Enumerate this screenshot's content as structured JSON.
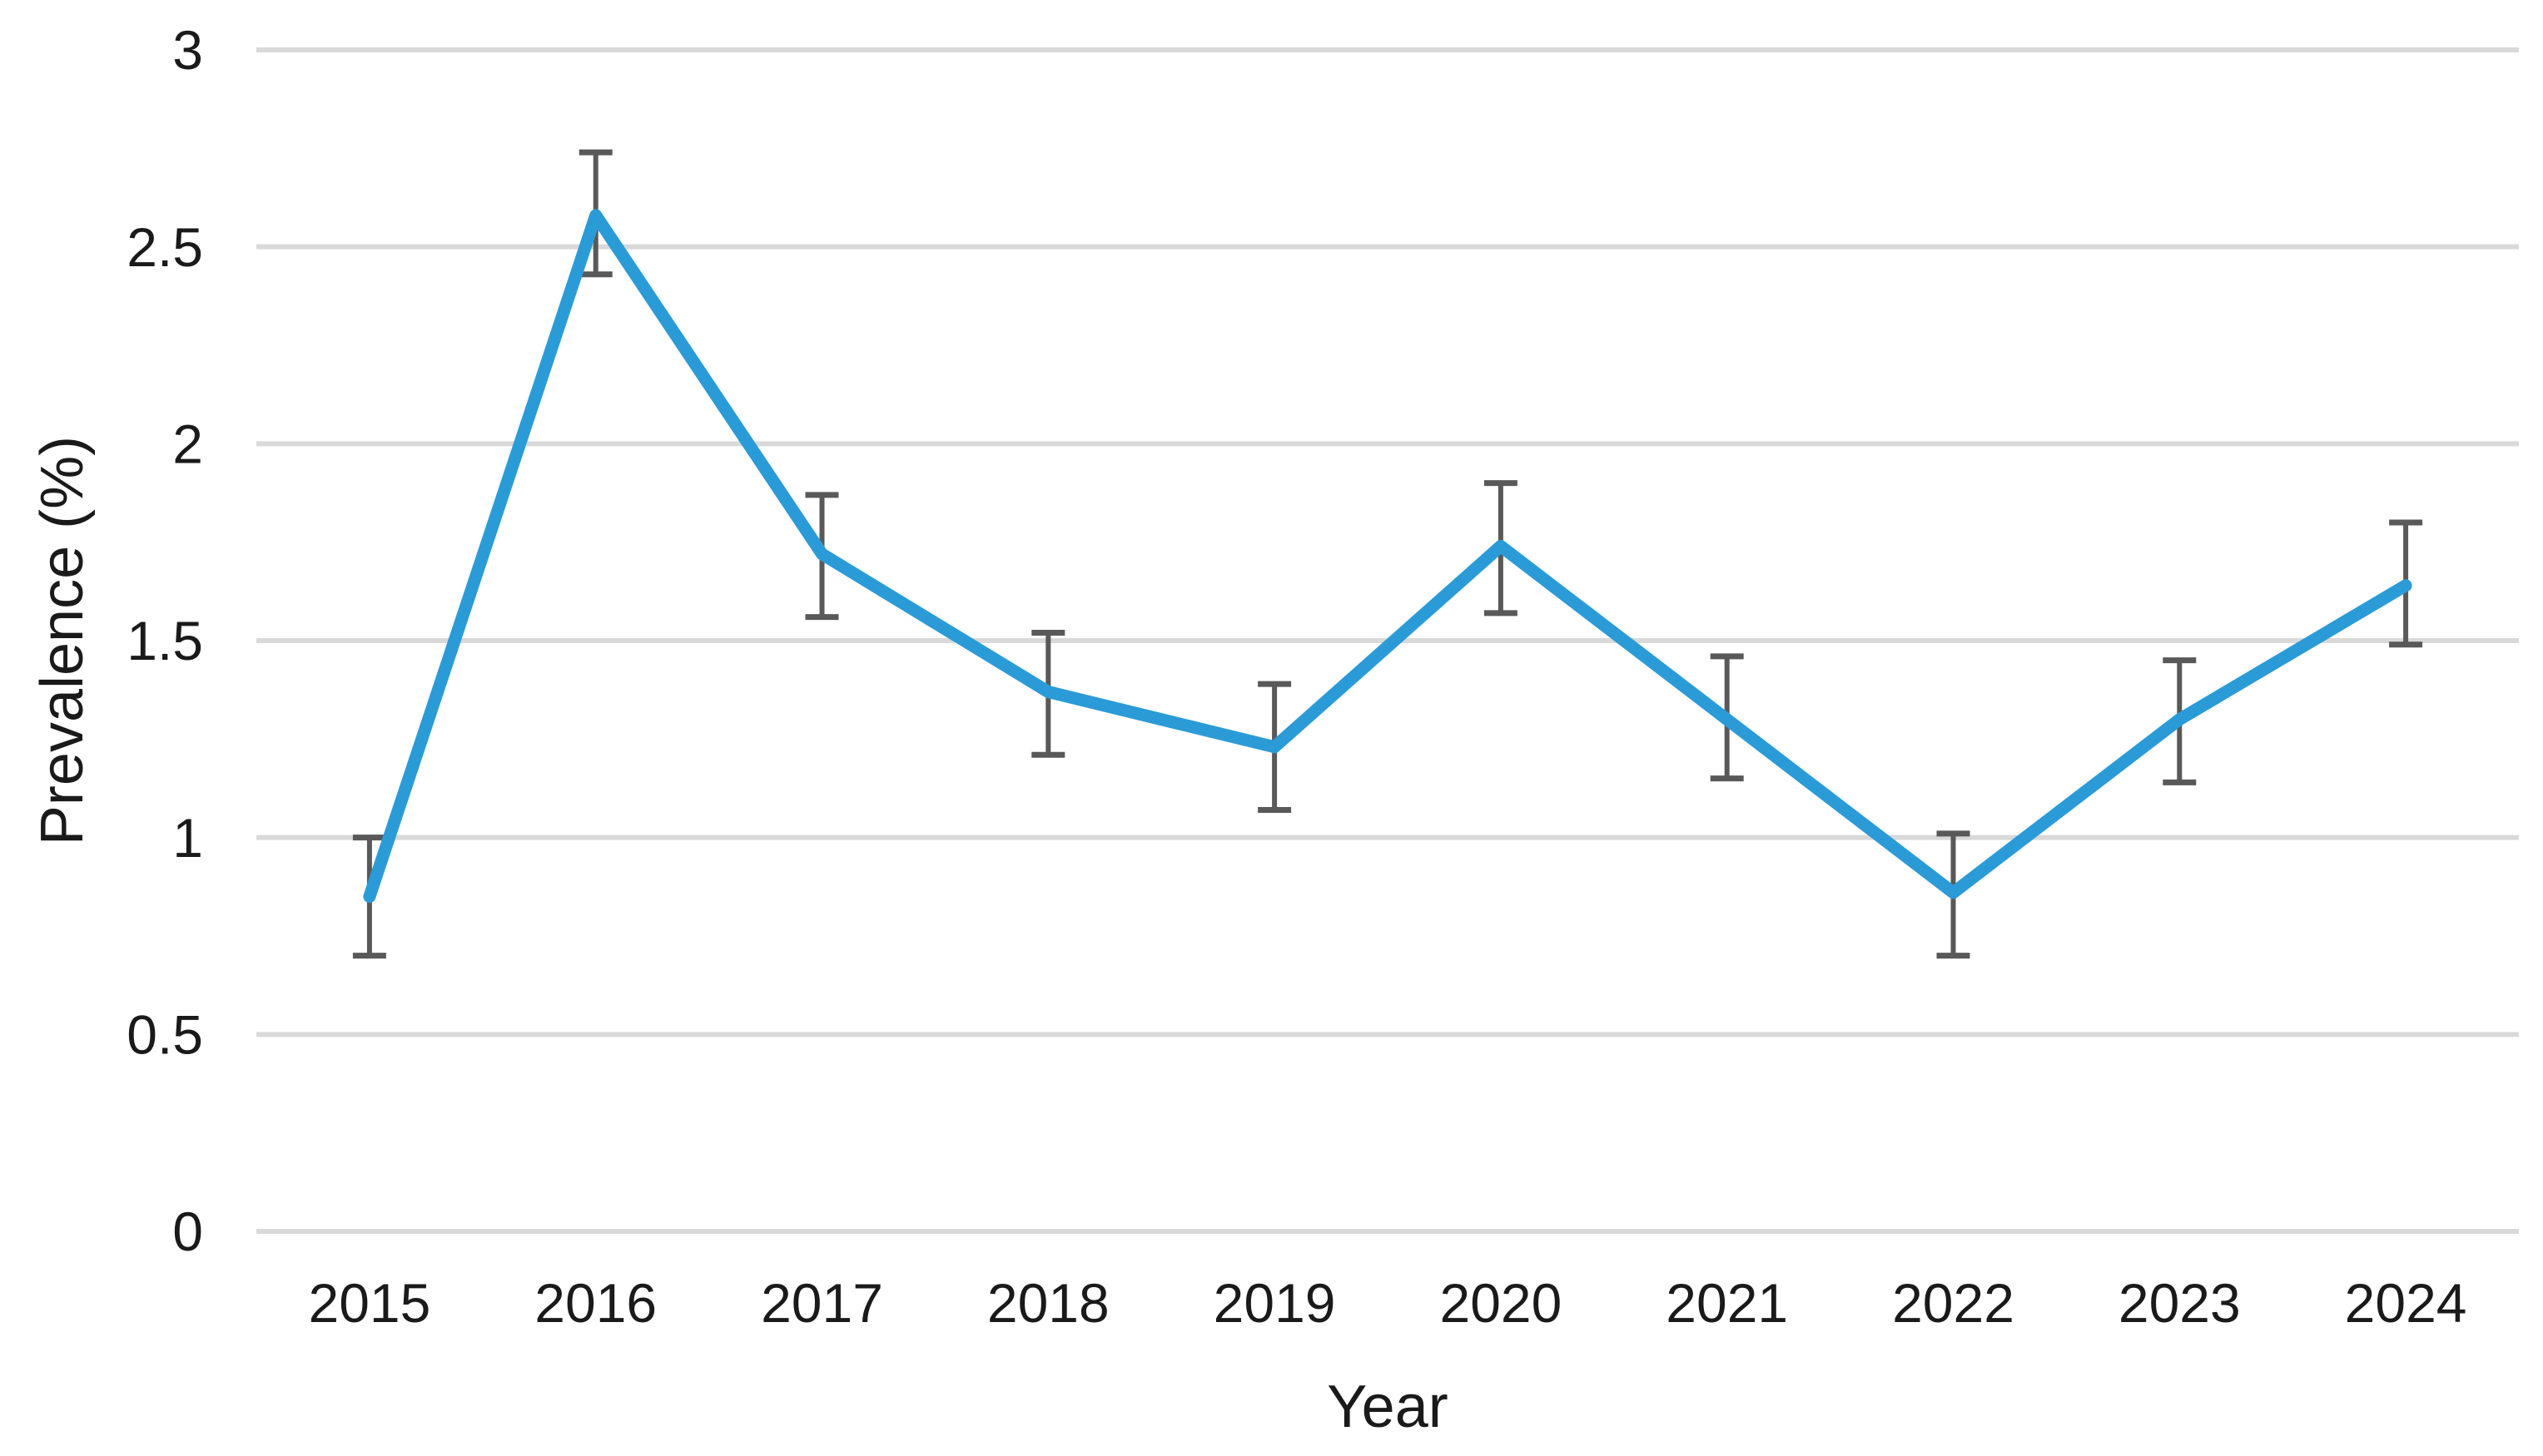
{
  "chart_data": {
    "type": "line",
    "title": "",
    "xlabel": "Year",
    "ylabel": "Prevalence (%)",
    "x": [
      2015,
      2016,
      2017,
      2018,
      2019,
      2020,
      2021,
      2022,
      2023,
      2024
    ],
    "series": [
      {
        "name": "Prevalence",
        "values": [
          0.85,
          2.58,
          1.72,
          1.37,
          1.23,
          1.74,
          1.3,
          0.86,
          1.3,
          1.64
        ],
        "ci_low": [
          0.7,
          2.43,
          1.56,
          1.21,
          1.07,
          1.57,
          1.15,
          0.7,
          1.14,
          1.49
        ],
        "ci_high": [
          1.0,
          2.74,
          1.87,
          1.52,
          1.39,
          1.9,
          1.46,
          1.01,
          1.45,
          1.8
        ]
      }
    ],
    "ylim": [
      0,
      3
    ],
    "yticks": [
      0,
      0.5,
      1,
      1.5,
      2,
      2.5,
      3
    ],
    "ytick_labels": [
      "0",
      "0.5",
      "1",
      "1.5",
      "2",
      "2.5",
      "3"
    ],
    "xtick_labels": [
      "2015",
      "2016",
      "2017",
      "2018",
      "2019",
      "2020",
      "2021",
      "2022",
      "2023",
      "2024"
    ],
    "grid": "horizontal",
    "legend": "none",
    "error_bars": true
  },
  "colors": {
    "line": "#2B9BD7",
    "error_bar": "#595959",
    "gridline": "#D9D9D9",
    "text": "#1A1A1A",
    "background": "#FFFFFF"
  }
}
